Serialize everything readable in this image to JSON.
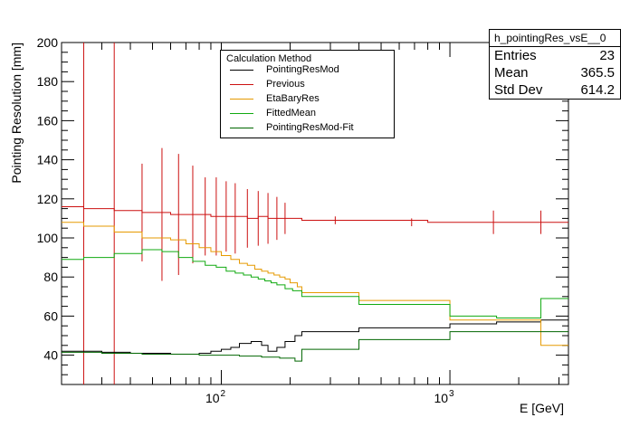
{
  "stats": {
    "title": "h_pointingRes_vsE__0",
    "rows": [
      {
        "label": "Entries",
        "value": "23"
      },
      {
        "label": "Mean",
        "value": "365.5"
      },
      {
        "label": "Std Dev",
        "value": "614.2"
      }
    ]
  },
  "legend": {
    "title": "Calculation Method"
  },
  "colors": {
    "PointingResMod": "#000000",
    "Previous": "#cc1111",
    "EtaBaryRes": "#e69a00",
    "FittedMean": "#11aa11",
    "PointingResMod-Fit": "#006600"
  },
  "chart_data": {
    "type": "line",
    "xlabel": "E [GeV]",
    "ylabel": "Pointing Resolution [mm]",
    "xscale": "log",
    "xlim": [
      20,
      3300
    ],
    "ylim": [
      25,
      200
    ],
    "yticks": [
      40,
      60,
      80,
      100,
      120,
      140,
      160,
      180,
      200
    ],
    "xticks": [
      {
        "value": 100,
        "base": "10",
        "exp": "2"
      },
      {
        "value": 1000,
        "base": "10",
        "exp": "3"
      }
    ],
    "legend_position": "top-center",
    "vertical_lines": [
      25,
      34
    ],
    "series": [
      {
        "name": "PointingResMod",
        "steps": [
          [
            20,
            42
          ],
          [
            25,
            42
          ],
          [
            30,
            41.5
          ],
          [
            40,
            41
          ],
          [
            60,
            40.5
          ],
          [
            80,
            41
          ],
          [
            90,
            42
          ],
          [
            100,
            43
          ],
          [
            110,
            44
          ],
          [
            120,
            46
          ],
          [
            135,
            47
          ],
          [
            150,
            45
          ],
          [
            160,
            42
          ],
          [
            175,
            44
          ],
          [
            190,
            47
          ],
          [
            210,
            50
          ],
          [
            225,
            52
          ],
          [
            400,
            54
          ],
          [
            1000,
            56
          ],
          [
            1600,
            57
          ],
          [
            2500,
            58
          ],
          [
            3300,
            58
          ]
        ]
      },
      {
        "name": "Previous",
        "steps": [
          [
            20,
            116
          ],
          [
            25,
            115
          ],
          [
            34,
            114
          ],
          [
            45,
            113
          ],
          [
            60,
            112
          ],
          [
            75,
            112
          ],
          [
            90,
            111
          ],
          [
            110,
            111
          ],
          [
            130,
            110
          ],
          [
            145,
            111
          ],
          [
            160,
            110
          ],
          [
            180,
            110
          ],
          [
            200,
            110
          ],
          [
            225,
            109
          ],
          [
            400,
            109
          ],
          [
            800,
            108
          ],
          [
            1200,
            108
          ],
          [
            2000,
            108
          ],
          [
            3300,
            108
          ]
        ],
        "errors": [
          {
            "x": 45,
            "y": 113,
            "e": 25
          },
          {
            "x": 55,
            "y": 112,
            "e": 34
          },
          {
            "x": 65,
            "y": 112,
            "e": 31
          },
          {
            "x": 75,
            "y": 112,
            "e": 25
          },
          {
            "x": 85,
            "y": 111,
            "e": 20
          },
          {
            "x": 95,
            "y": 111,
            "e": 20
          },
          {
            "x": 105,
            "y": 111,
            "e": 18
          },
          {
            "x": 115,
            "y": 110,
            "e": 18
          },
          {
            "x": 130,
            "y": 110,
            "e": 15
          },
          {
            "x": 145,
            "y": 110,
            "e": 14
          },
          {
            "x": 160,
            "y": 110,
            "e": 13
          },
          {
            "x": 175,
            "y": 110,
            "e": 11
          },
          {
            "x": 190,
            "y": 110,
            "e": 8
          },
          {
            "x": 315,
            "y": 109,
            "e": 2
          },
          {
            "x": 680,
            "y": 108,
            "e": 2
          },
          {
            "x": 1550,
            "y": 108,
            "e": 6
          },
          {
            "x": 2500,
            "y": 108,
            "e": 6
          }
        ]
      },
      {
        "name": "EtaBaryRes",
        "steps": [
          [
            20,
            108
          ],
          [
            25,
            106
          ],
          [
            34,
            103
          ],
          [
            45,
            100
          ],
          [
            60,
            99
          ],
          [
            70,
            97
          ],
          [
            80,
            95
          ],
          [
            90,
            93
          ],
          [
            100,
            91
          ],
          [
            110,
            89
          ],
          [
            120,
            87
          ],
          [
            130,
            86
          ],
          [
            140,
            84
          ],
          [
            150,
            83
          ],
          [
            160,
            82
          ],
          [
            170,
            81
          ],
          [
            180,
            80
          ],
          [
            190,
            79
          ],
          [
            200,
            77
          ],
          [
            215,
            75
          ],
          [
            225,
            72
          ],
          [
            400,
            68
          ],
          [
            1000,
            58
          ],
          [
            2500,
            45
          ],
          [
            3300,
            45
          ]
        ]
      },
      {
        "name": "FittedMean",
        "steps": [
          [
            20,
            89
          ],
          [
            25,
            90
          ],
          [
            34,
            92
          ],
          [
            45,
            94
          ],
          [
            55,
            93
          ],
          [
            65,
            90
          ],
          [
            75,
            88
          ],
          [
            85,
            86
          ],
          [
            95,
            85
          ],
          [
            105,
            83
          ],
          [
            115,
            82
          ],
          [
            125,
            81
          ],
          [
            135,
            80
          ],
          [
            145,
            79
          ],
          [
            155,
            78
          ],
          [
            165,
            77
          ],
          [
            175,
            76
          ],
          [
            190,
            74
          ],
          [
            205,
            73
          ],
          [
            225,
            70
          ],
          [
            400,
            66
          ],
          [
            1000,
            60
          ],
          [
            1600,
            59
          ],
          [
            2500,
            69
          ],
          [
            3300,
            69
          ]
        ]
      },
      {
        "name": "PointingResMod-Fit",
        "steps": [
          [
            20,
            41.5
          ],
          [
            30,
            41
          ],
          [
            45,
            40.5
          ],
          [
            60,
            40.5
          ],
          [
            80,
            40
          ],
          [
            100,
            40
          ],
          [
            120,
            39.5
          ],
          [
            150,
            39
          ],
          [
            180,
            38.5
          ],
          [
            210,
            37
          ],
          [
            225,
            43
          ],
          [
            400,
            48
          ],
          [
            1000,
            52
          ],
          [
            3300,
            52
          ]
        ]
      }
    ]
  }
}
